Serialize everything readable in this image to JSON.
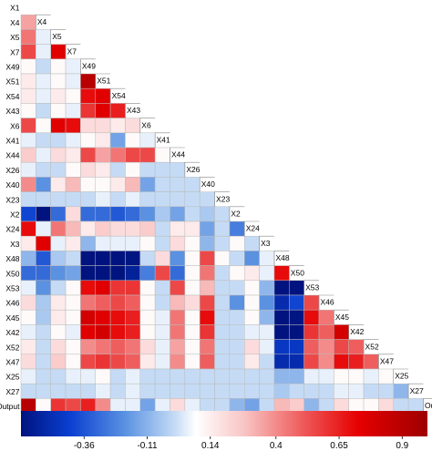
{
  "chart_data": {
    "type": "heatmap",
    "title": "",
    "variables": [
      "X1",
      "X4",
      "X5",
      "X7",
      "X49",
      "X51",
      "X54",
      "X43",
      "X6",
      "X41",
      "X44",
      "X26",
      "X40",
      "X23",
      "X2",
      "X24",
      "X3",
      "X48",
      "X50",
      "X53",
      "X46",
      "X45",
      "X42",
      "X52",
      "X47",
      "X25",
      "X27",
      "Output"
    ],
    "layout": "lower-triangle",
    "matrix": [
      [],
      [
        0.35
      ],
      [
        0.45,
        0.05
      ],
      [
        0.55,
        0.05,
        0.75
      ],
      [
        0.1,
        0.0,
        0.1,
        0.05
      ],
      [
        0.15,
        0.05,
        0.1,
        0.05,
        0.9
      ],
      [
        0.15,
        0.05,
        0.15,
        0.1,
        0.7,
        0.75
      ],
      [
        0.1,
        0.0,
        0.1,
        0.05,
        0.6,
        0.75,
        0.65
      ],
      [
        0.55,
        0.1,
        0.75,
        0.7,
        0.2,
        0.2,
        0.15,
        0.2
      ],
      [
        0.05,
        0.0,
        0.0,
        0.05,
        0.1,
        0.15,
        -0.15,
        0.1,
        0.05
      ],
      [
        0.25,
        0.05,
        0.2,
        0.15,
        0.55,
        0.35,
        0.45,
        0.55,
        0.55,
        0.1
      ],
      [
        0.05,
        0.0,
        0.0,
        0.1,
        0.2,
        0.15,
        0.0,
        0.1,
        0.0,
        0.0,
        0.0
      ],
      [
        0.4,
        -0.2,
        0.15,
        0.3,
        0.1,
        0.1,
        0.15,
        0.3,
        -0.15,
        0.0,
        0.0,
        0.0
      ],
      [
        0.0,
        0.0,
        0.0,
        0.0,
        0.0,
        0.05,
        0.0,
        0.05,
        0.0,
        0.0,
        0.0,
        0.0,
        0.0
      ],
      [
        -0.4,
        -0.9,
        -0.3,
        0.2,
        -0.3,
        -0.3,
        -0.35,
        -0.3,
        -0.2,
        -0.05,
        -0.15,
        0.0,
        -0.05,
        0.0
      ],
      [
        0.7,
        0.05,
        0.45,
        0.3,
        0.15,
        0.25,
        0.2,
        0.2,
        0.25,
        0.0,
        0.15,
        0.15,
        -0.15,
        0.0,
        -0.25
      ],
      [
        0.15,
        0.75,
        0.05,
        0.15,
        -0.1,
        0.05,
        0.05,
        0.05,
        0.1,
        0.0,
        0.2,
        0.1,
        -0.1,
        0.0,
        0.1,
        0.0
      ],
      [
        -0.1,
        -0.35,
        -0.05,
        0.0,
        -0.75,
        -0.8,
        -0.7,
        -0.6,
        0.0,
        0.2,
        -0.2,
        0.1,
        0.55,
        0.1,
        0.0,
        -0.2,
        0.05
      ],
      [
        -0.3,
        -0.3,
        -0.2,
        -0.15,
        -0.7,
        -0.65,
        -0.7,
        -0.55,
        -0.25,
        0.55,
        -0.3,
        0.1,
        0.45,
        0.0,
        0.1,
        0.15,
        0.05,
        0.7
      ],
      [
        0.05,
        -0.2,
        0.0,
        0.1,
        0.7,
        0.75,
        0.6,
        0.6,
        0.1,
        0.0,
        0.55,
        0.1,
        0.3,
        0.0,
        0.0,
        0.1,
        -0.1,
        -0.7,
        -0.75
      ],
      [
        0.2,
        -0.05,
        0.15,
        0.1,
        0.45,
        0.5,
        0.55,
        0.5,
        0.1,
        0.0,
        0.3,
        0.2,
        0.55,
        0.0,
        -0.2,
        0.1,
        -0.2,
        -0.5,
        -0.4,
        0.55
      ],
      [
        0.1,
        -0.05,
        0.15,
        0.1,
        0.8,
        0.75,
        0.7,
        0.65,
        0.1,
        0.05,
        0.45,
        0.1,
        0.7,
        0.0,
        0.0,
        0.1,
        -0.1,
        -0.7,
        -0.6,
        0.7,
        0.45
      ],
      [
        0.05,
        0.0,
        0.1,
        0.05,
        0.75,
        0.8,
        0.7,
        0.65,
        0.1,
        0.05,
        0.45,
        0.1,
        0.6,
        0.0,
        0.0,
        0.05,
        0.05,
        -0.7,
        -0.65,
        0.6,
        0.5,
        0.8
      ],
      [
        0.15,
        0.0,
        0.2,
        0.1,
        0.4,
        0.45,
        0.5,
        0.45,
        0.2,
        0.05,
        0.35,
        0.1,
        0.45,
        0.0,
        0.0,
        0.2,
        0.05,
        -0.45,
        -0.45,
        0.5,
        0.4,
        0.55,
        0.5
      ],
      [
        0.2,
        0.0,
        0.25,
        0.1,
        0.55,
        0.6,
        0.55,
        0.5,
        0.15,
        0.05,
        0.4,
        0.1,
        0.5,
        0.0,
        0.0,
        0.15,
        0.0,
        -0.5,
        -0.5,
        0.55,
        0.4,
        0.7,
        0.65,
        0.5
      ],
      [
        0.05,
        0.0,
        0.0,
        0.05,
        0.05,
        0.1,
        0.0,
        0.05,
        0.0,
        0.0,
        0.0,
        0.0,
        0.0,
        0.0,
        0.0,
        0.0,
        0.0,
        -0.1,
        -0.1,
        0.05,
        0.05,
        0.1,
        0.1,
        0.05,
        0.1
      ],
      [
        0.0,
        0.0,
        0.0,
        0.0,
        0.0,
        0.05,
        0.0,
        0.05,
        0.0,
        0.0,
        0.0,
        0.0,
        0.0,
        0.0,
        0.0,
        0.0,
        0.0,
        -0.05,
        0.0,
        0.0,
        0.0,
        0.05,
        0.05,
        0.0,
        0.0,
        -0.1
      ],
      [
        0.9,
        0.1,
        0.6,
        0.55,
        0.65,
        0.4,
        0.05,
        0.05,
        -0.15,
        0.05,
        0.2,
        0.05,
        0.0,
        0.0,
        -0.1,
        -0.15,
        0.0,
        0.3,
        0.25,
        -0.1,
        0.0,
        0.2,
        0.1,
        0.1,
        0.2,
        0.0,
        0.0
      ]
    ],
    "colorbar": {
      "ticks": [
        -0.36,
        -0.11,
        0.14,
        0.4,
        0.65,
        0.9
      ],
      "tick_labels": [
        "-0.36",
        "-0.11",
        "0.14",
        "0.4",
        "0.65",
        "0.9"
      ],
      "min": -0.61,
      "max": 1.0
    },
    "colors": {
      "negative_max": "#00137f",
      "neutral": "#ffffff",
      "positive_max": "#9e0000",
      "grid": "#bbbbbb"
    }
  }
}
